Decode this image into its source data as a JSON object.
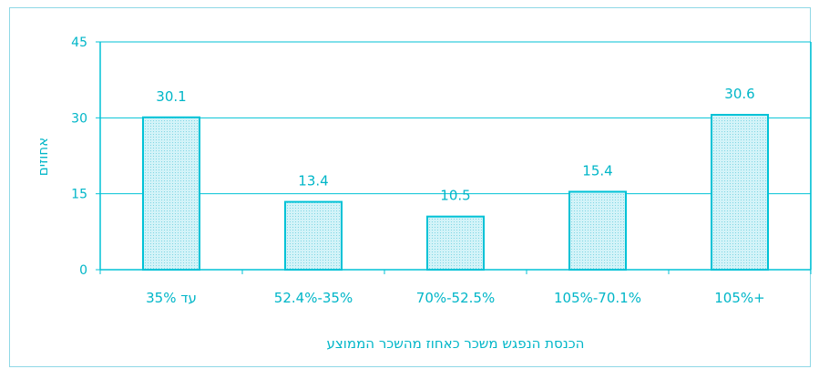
{
  "chart_data": {
    "type": "bar",
    "categories": [
      "עד 35%",
      "52.4%-35%",
      "70%-52.5%",
      "105%-70.1%",
      "105%+"
    ],
    "values": [
      30.1,
      13.4,
      10.5,
      15.4,
      30.6
    ],
    "value_labels": [
      "30.1",
      "13.4",
      "10.5",
      "15.4",
      "30.6"
    ],
    "xlabel": "הכנסת הנפגש משכר כאחוז מהשכר הממוצע",
    "ylabel": "אחוזים",
    "ylim": [
      0,
      45
    ],
    "yticks": [
      0,
      15,
      30,
      45
    ],
    "grid": true,
    "colors": {
      "accent": "#00b6c8",
      "bar_fill": "#c6eef4",
      "bar_stroke": "#00c2d6",
      "grid": "#00c2d6",
      "frame": "#8fd8e6"
    }
  }
}
